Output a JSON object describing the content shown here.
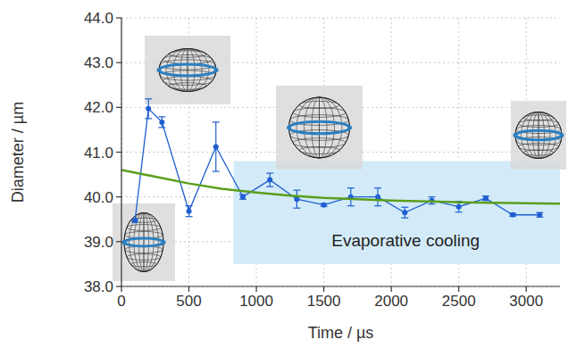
{
  "chart_data": {
    "type": "line",
    "x_label": "Time / µs",
    "y_label": "Diameter / µm",
    "xlim": [
      0,
      3250
    ],
    "ylim": [
      38,
      44
    ],
    "xticks": [
      0,
      500,
      1000,
      1500,
      2000,
      2500,
      3000
    ],
    "yticks": [
      {
        "value": 38,
        "label": "38.0"
      },
      {
        "value": 39,
        "label": "39.0"
      },
      {
        "value": 40,
        "label": "40.0"
      },
      {
        "value": 41,
        "label": "41.0"
      },
      {
        "value": 42,
        "label": "42.0"
      },
      {
        "value": 43,
        "label": "43.0"
      },
      {
        "value": 44,
        "label": "44.0"
      }
    ],
    "grid": true,
    "series": [
      {
        "type": "line",
        "marker": "circle",
        "line_style": "solid",
        "color": "#1f5fd0",
        "x": [
          100,
          200,
          300,
          500,
          700,
          900,
          1100,
          1300,
          1500,
          1700,
          1900,
          2100,
          2300,
          2500,
          2700,
          2900,
          3100
        ],
        "values": [
          39.47,
          41.97,
          41.67,
          39.68,
          41.12,
          40.0,
          40.38,
          39.95,
          39.82,
          40.0,
          40.0,
          39.65,
          39.92,
          39.78,
          39.97,
          39.6,
          39.6
        ],
        "errors": [
          0.03,
          0.22,
          0.12,
          0.12,
          0.55,
          0.05,
          0.15,
          0.2,
          0.03,
          0.2,
          0.2,
          0.12,
          0.08,
          0.12,
          0.05,
          0.03,
          0.05
        ]
      },
      {
        "type": "line",
        "marker": "none",
        "line_style": "solid",
        "color": "#5a9e1a",
        "x": [
          0,
          250,
          500,
          750,
          1000,
          1250,
          1500,
          1750,
          2000,
          2500,
          3000,
          3250
        ],
        "values": [
          40.6,
          40.45,
          40.3,
          40.18,
          40.1,
          40.03,
          39.98,
          39.95,
          39.92,
          39.88,
          39.86,
          39.85
        ]
      }
    ],
    "annotations": [
      {
        "text": "Evaporative cooling",
        "x_range": [
          830,
          3250
        ],
        "y_range": [
          38.5,
          40.8
        ],
        "color": "#d3ebf8"
      }
    ]
  }
}
